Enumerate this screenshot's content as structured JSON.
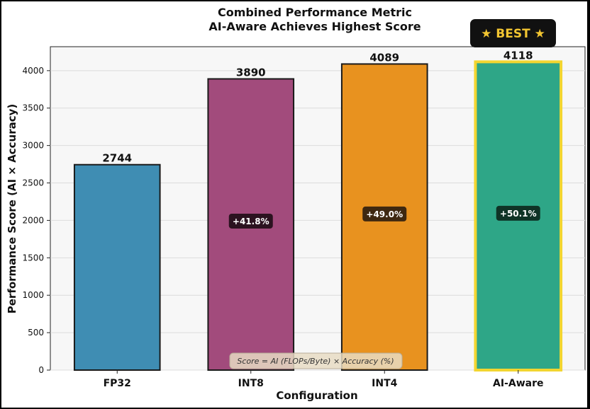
{
  "chart_data": {
    "type": "bar",
    "title_lines": [
      "Combined Performance Metric",
      "AI-Aware Achieves Highest Score"
    ],
    "xlabel": "Configuration",
    "ylabel": "Performance Score (AI × Accuracy)",
    "ylim": [
      0,
      4320
    ],
    "yticks": [
      "0",
      "500",
      "1000",
      "1500",
      "2000",
      "2500",
      "3000",
      "3500",
      "4000"
    ],
    "grid": true,
    "categories": [
      "FP32",
      "INT8",
      "INT4",
      "AI-Aware"
    ],
    "values": [
      2744,
      3890,
      4089,
      4118
    ],
    "value_labels": [
      "2744",
      "3890",
      "4089",
      "4118"
    ],
    "improvement_labels": [
      "",
      "+41.8%",
      "+49.0%",
      "+50.1%"
    ],
    "improvement_label_y": [
      0,
      1990,
      2085,
      2095
    ],
    "bar_colors": [
      "#3f8db3",
      "#a24b7c",
      "#e8921f",
      "#2ea687"
    ],
    "badge_colors": [
      "",
      "#2c1320",
      "#3e2810",
      "#0f3326"
    ],
    "highlight_index": 3,
    "highlight_color": "#f2d530",
    "best_badge": "★ BEST ★",
    "formula_note": "Score = AI (FLOPs/Byte) × Accuracy (%)"
  }
}
